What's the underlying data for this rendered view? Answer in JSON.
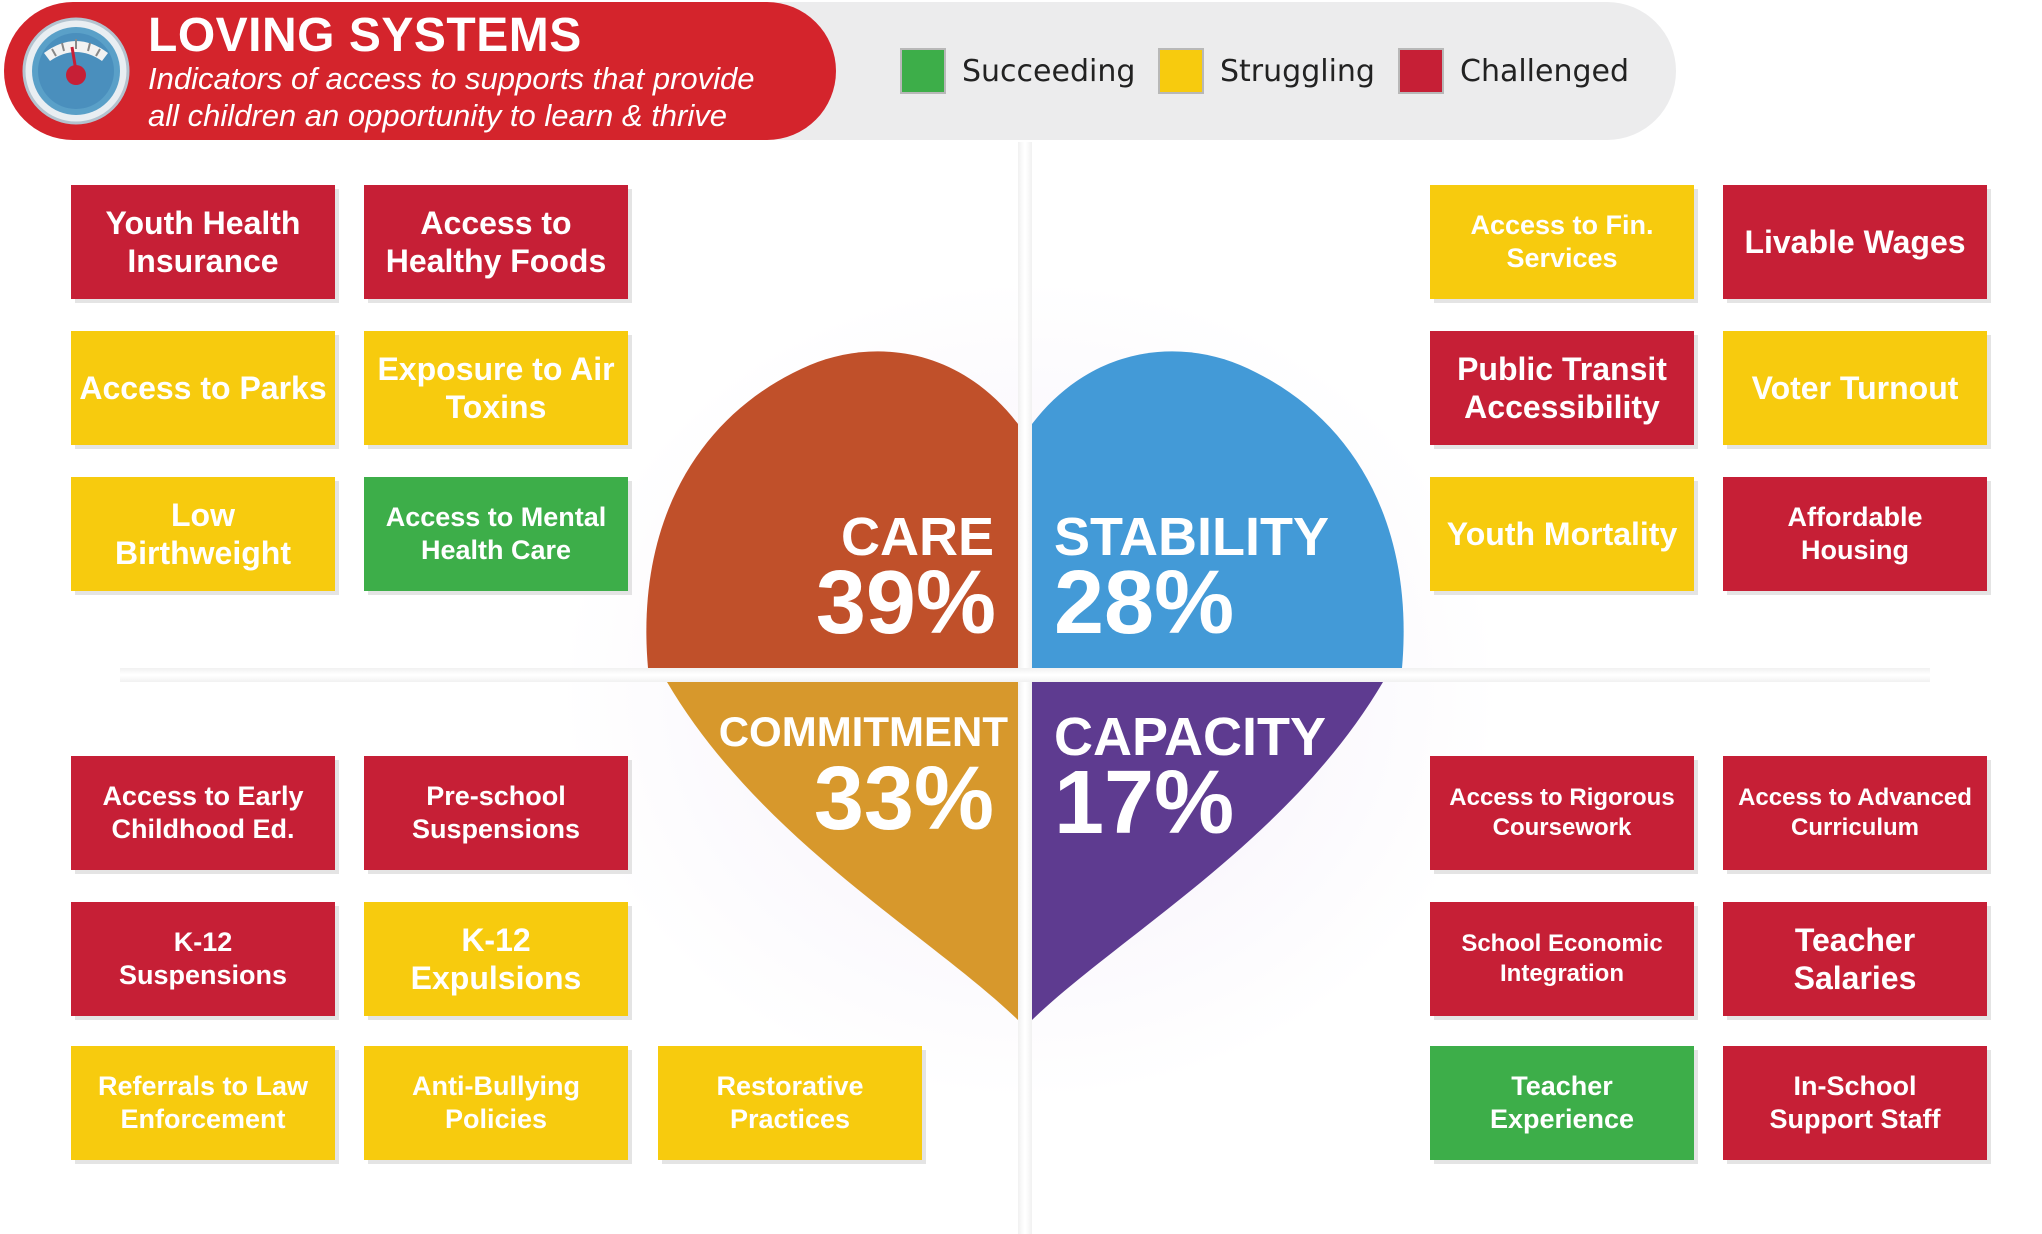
{
  "header": {
    "title": "LOVING SYSTEMS",
    "subtitle_line1": "Indicators of access to supports that provide",
    "subtitle_line2": "all children an opportunity to learn & thrive",
    "icon": "scale-icon"
  },
  "legend": [
    {
      "label": "Succeeding",
      "color": "#3dae49"
    },
    {
      "label": "Struggling",
      "color": "#f7cb0e"
    },
    {
      "label": "Challenged",
      "color": "#c61f36"
    }
  ],
  "status_colors": {
    "succeeding": "#3dae49",
    "struggling": "#f7cb0e",
    "challenged": "#c61f36"
  },
  "quadrants": {
    "care": {
      "name": "CARE",
      "percent": "39%",
      "color": "#c0502a"
    },
    "stability": {
      "name": "STABILITY",
      "percent": "28%",
      "color": "#439ad7"
    },
    "commitment": {
      "name": "COMMITMENT",
      "percent": "33%",
      "color": "#d7982c"
    },
    "capacity": {
      "name": "CAPACITY",
      "percent": "17%",
      "color": "#5e3b90"
    }
  },
  "indicators": {
    "care": [
      {
        "l1": "Youth Health",
        "l2": "Insurance",
        "status": "challenged"
      },
      {
        "l1": "Access to",
        "l2": "Healthy Foods",
        "status": "challenged"
      },
      {
        "l1": "Access to Parks",
        "l2": "",
        "status": "struggling"
      },
      {
        "l1": "Exposure to Air",
        "l2": "Toxins",
        "status": "struggling"
      },
      {
        "l1": "Low",
        "l2": "Birthweight",
        "status": "struggling"
      },
      {
        "l1": "Access to Mental",
        "l2": "Health Care",
        "status": "succeeding"
      }
    ],
    "stability": [
      {
        "l1": "Access to Fin.",
        "l2": "Services",
        "status": "struggling"
      },
      {
        "l1": "Livable Wages",
        "l2": "",
        "status": "challenged"
      },
      {
        "l1": "Public Transit",
        "l2": "Accessibility",
        "status": "challenged"
      },
      {
        "l1": "Voter Turnout",
        "l2": "",
        "status": "struggling"
      },
      {
        "l1": "Youth Mortality",
        "l2": "",
        "status": "struggling"
      },
      {
        "l1": "Affordable",
        "l2": "Housing",
        "status": "challenged"
      }
    ],
    "commitment": [
      {
        "l1": "Access to Early",
        "l2": "Childhood Ed.",
        "status": "challenged"
      },
      {
        "l1": "Pre-school",
        "l2": "Suspensions",
        "status": "challenged"
      },
      {
        "l1": "K-12",
        "l2": "Suspensions",
        "status": "challenged"
      },
      {
        "l1": "K-12",
        "l2": "Expulsions",
        "status": "struggling"
      },
      {
        "l1": "Referrals to Law",
        "l2": "Enforcement",
        "status": "struggling"
      },
      {
        "l1": "Anti-Bullying",
        "l2": "Policies",
        "status": "struggling"
      },
      {
        "l1": "Restorative",
        "l2": "Practices",
        "status": "struggling"
      }
    ],
    "capacity": [
      {
        "l1": "Access to Rigorous",
        "l2": "Coursework",
        "status": "challenged"
      },
      {
        "l1": "Access to Advanced",
        "l2": "Curriculum",
        "status": "challenged"
      },
      {
        "l1": "School Economic",
        "l2": "Integration",
        "status": "challenged"
      },
      {
        "l1": "Teacher",
        "l2": "Salaries",
        "status": "challenged"
      },
      {
        "l1": "Teacher",
        "l2": "Experience",
        "status": "succeeding"
      },
      {
        "l1": "In-School",
        "l2": "Support Staff",
        "status": "challenged"
      }
    ]
  }
}
